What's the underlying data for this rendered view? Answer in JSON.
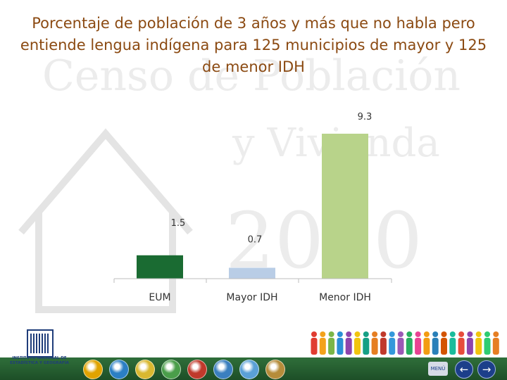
{
  "title": "Porcentaje de población de 3 años y más que no habla pero entiende lengua indígena para 125 municipios de mayor y 125 de menor IDH",
  "watermark": {
    "line1": "Censo de Población",
    "line2": "y Vivienda",
    "year": "2010"
  },
  "chart_data": {
    "type": "bar",
    "categories": [
      "EUM",
      "Mayor IDH",
      "Menor IDH"
    ],
    "values": [
      1.5,
      0.7,
      9.3
    ],
    "value_labels": [
      "1.5",
      "0.7",
      "9.3"
    ],
    "colors": [
      "#1a6b32",
      "#b9cde6",
      "#b8d38a"
    ],
    "title": "",
    "xlabel": "",
    "ylabel": "",
    "ylim": [
      0,
      10
    ],
    "grid": false,
    "legend": "none"
  },
  "logo": {
    "name": "INEGI",
    "text": "INSTITUTO NACIONAL DE ESTADÍSTICA Y GEOGRAFÍA"
  },
  "nav": {
    "menu_label": "MENÚ",
    "back_icon": "arrow-left-icon",
    "forward_icon": "arrow-right-icon",
    "back_glyph": "←",
    "forward_glyph": "→",
    "icons": [
      "people-icon",
      "water-icon",
      "group-icon",
      "person-icon",
      "house-icon",
      "building-icon",
      "globe-icon",
      "document-icon"
    ],
    "icon_colors": [
      "#e0a300",
      "#2b7fc4",
      "#d9b830",
      "#4a9e4a",
      "#c0392b",
      "#3a7fbf",
      "#5aa0d6",
      "#b58c3a"
    ]
  }
}
